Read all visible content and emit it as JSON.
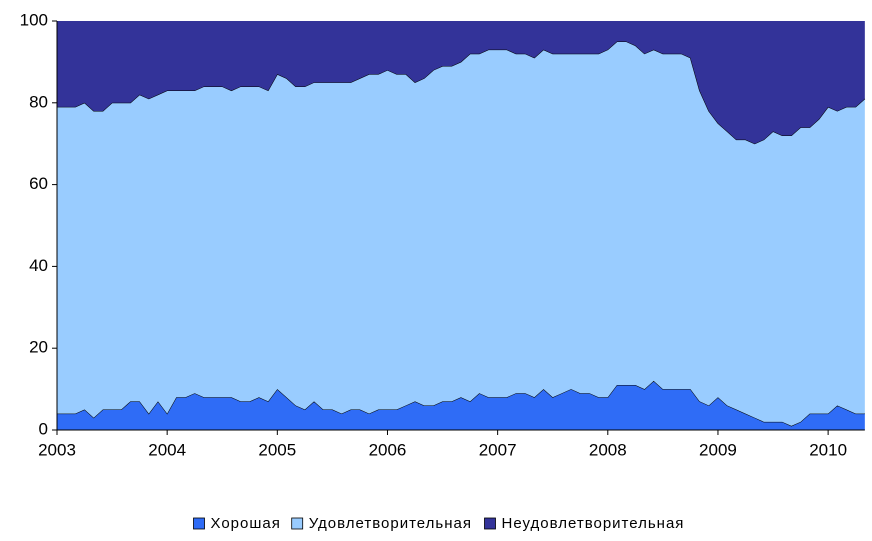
{
  "chart_data": {
    "type": "stacked_area",
    "categories": [
      "2003",
      null,
      null,
      null,
      null,
      null,
      null,
      null,
      null,
      null,
      null,
      null,
      "2004",
      null,
      null,
      null,
      null,
      null,
      null,
      null,
      null,
      null,
      null,
      null,
      "2005",
      null,
      null,
      null,
      null,
      null,
      null,
      null,
      null,
      null,
      null,
      null,
      "2006",
      null,
      null,
      null,
      null,
      null,
      null,
      null,
      null,
      null,
      null,
      null,
      "2007",
      null,
      null,
      null,
      null,
      null,
      null,
      null,
      null,
      null,
      null,
      null,
      "2008",
      null,
      null,
      null,
      null,
      null,
      null,
      null,
      null,
      null,
      null,
      null,
      "2009",
      null,
      null,
      null,
      null,
      null,
      null,
      null,
      null,
      null,
      null,
      null,
      "2010",
      null,
      null,
      null,
      null
    ],
    "series": [
      {
        "name": "Хорошая",
        "color": "#2f6cf6",
        "values": [
          4,
          4,
          4,
          5,
          3,
          5,
          5,
          5,
          7,
          7,
          4,
          7,
          4,
          8,
          8,
          9,
          8,
          8,
          8,
          8,
          7,
          7,
          8,
          7,
          10,
          8,
          6,
          5,
          7,
          5,
          5,
          4,
          5,
          5,
          4,
          5,
          5,
          5,
          6,
          7,
          6,
          6,
          7,
          7,
          8,
          7,
          9,
          8,
          8,
          8,
          9,
          9,
          8,
          10,
          8,
          9,
          10,
          9,
          9,
          8,
          8,
          11,
          11,
          11,
          10,
          12,
          10,
          10,
          10,
          10,
          7,
          6,
          8,
          6,
          5,
          4,
          3,
          2,
          2,
          2,
          1,
          2,
          4,
          4,
          4,
          6,
          5,
          4,
          4
        ]
      },
      {
        "name": "Удовлетворительная",
        "color": "#99ccff",
        "values": [
          75,
          75,
          75,
          75,
          75,
          73,
          75,
          75,
          73,
          75,
          77,
          75,
          79,
          75,
          75,
          74,
          76,
          76,
          76,
          75,
          77,
          77,
          76,
          76,
          77,
          78,
          78,
          79,
          78,
          80,
          80,
          81,
          80,
          81,
          83,
          82,
          83,
          82,
          81,
          78,
          80,
          82,
          82,
          82,
          82,
          85,
          83,
          85,
          85,
          85,
          83,
          83,
          83,
          83,
          84,
          83,
          82,
          83,
          83,
          84,
          85,
          84,
          84,
          83,
          82,
          81,
          82,
          82,
          82,
          81,
          76,
          72,
          67,
          67,
          66,
          67,
          67,
          69,
          71,
          70,
          71,
          72,
          70,
          72,
          75,
          72,
          74,
          75,
          77
        ]
      },
      {
        "name": "Неудовлетворительная",
        "color": "#333399",
        "values": [
          21,
          21,
          21,
          20,
          22,
          22,
          20,
          20,
          20,
          18,
          19,
          18,
          17,
          17,
          17,
          17,
          16,
          16,
          16,
          17,
          16,
          16,
          16,
          17,
          13,
          14,
          16,
          16,
          15,
          15,
          15,
          15,
          15,
          14,
          13,
          13,
          12,
          13,
          13,
          15,
          14,
          12,
          11,
          11,
          10,
          8,
          8,
          7,
          7,
          7,
          8,
          8,
          9,
          7,
          8,
          8,
          8,
          8,
          8,
          8,
          7,
          5,
          5,
          6,
          8,
          7,
          8,
          8,
          8,
          9,
          17,
          22,
          25,
          27,
          29,
          29,
          30,
          29,
          27,
          28,
          28,
          26,
          26,
          24,
          21,
          22,
          21,
          21,
          19
        ]
      }
    ],
    "ylim": [
      0,
      100
    ],
    "yticks": [
      0,
      20,
      40,
      60,
      80,
      100
    ],
    "grid": false,
    "legend": "bottom"
  }
}
